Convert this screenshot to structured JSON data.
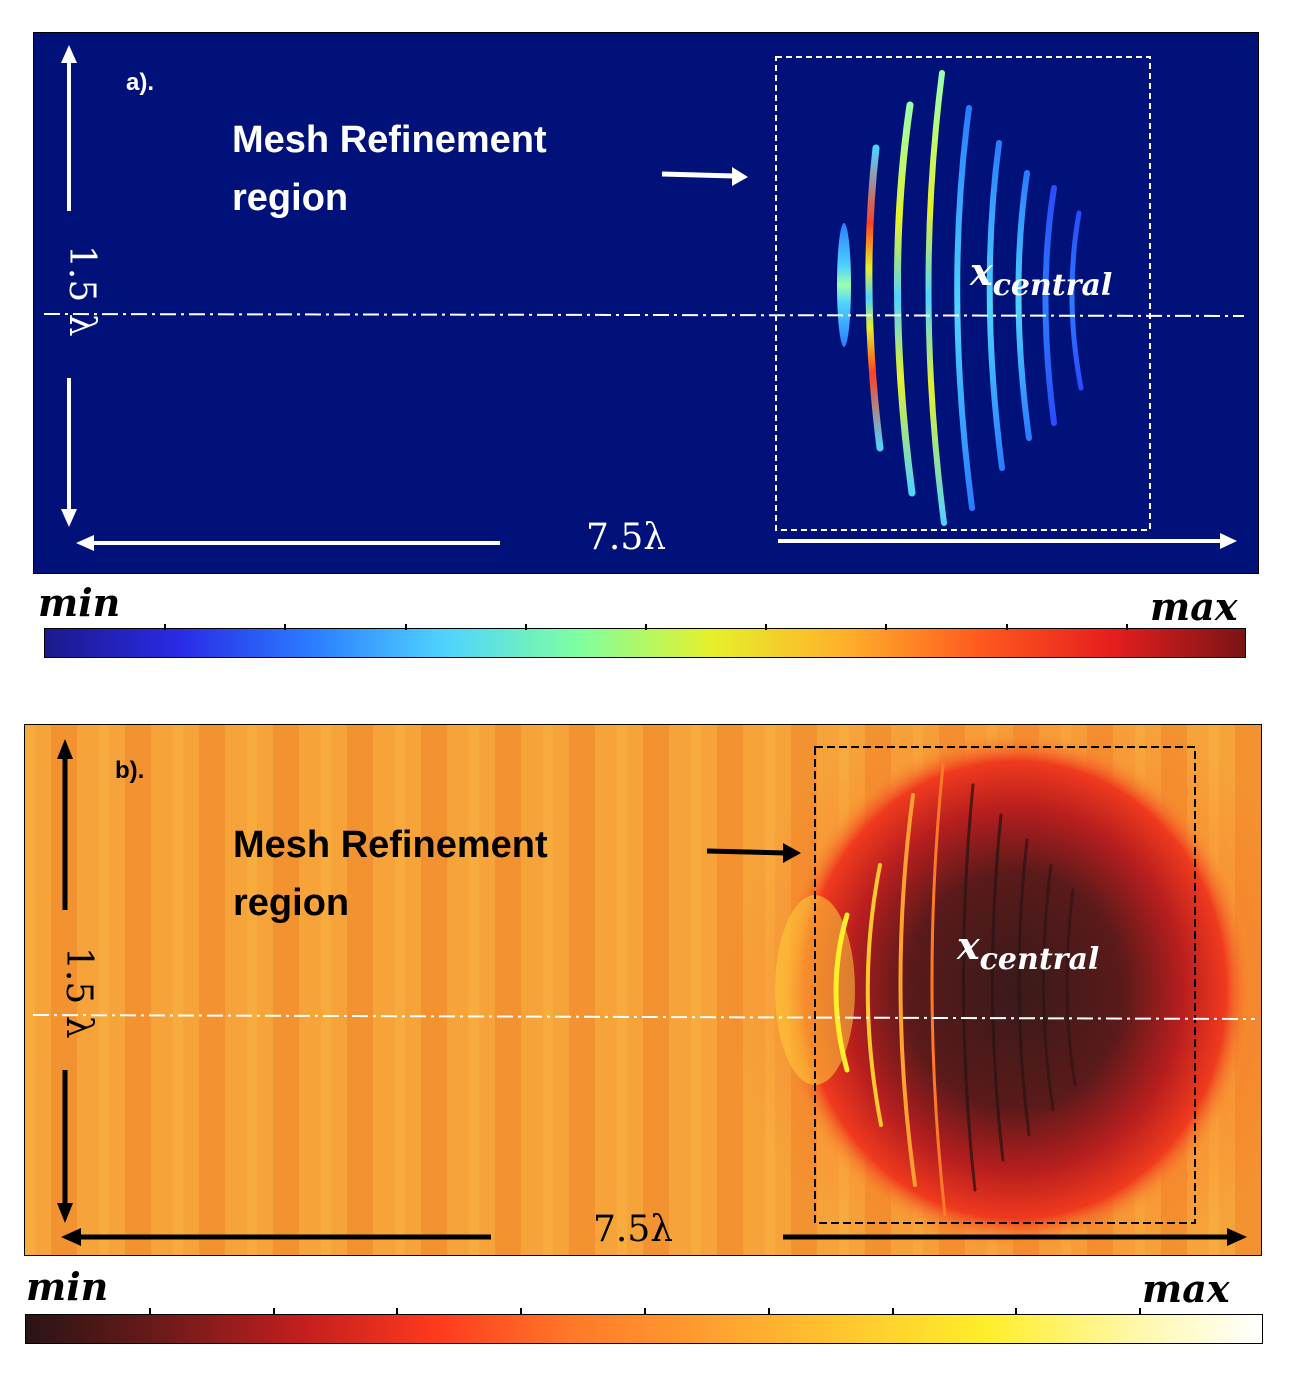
{
  "panel_a": {
    "tag": "a).",
    "title_line1": "Mesh Refinement",
    "title_line2": "region",
    "x_label_main": "x",
    "x_label_sub": "central",
    "height_label": "1.5 λ",
    "width_label": "7.5λ",
    "colormap": "jet",
    "colors": {
      "background": "#00127a",
      "annotation": "#ffffff"
    }
  },
  "colorbar_a": {
    "min_label": "min",
    "max_label": "max",
    "stops": [
      "#1a1a8c",
      "#2a2ae6",
      "#2a7cff",
      "#4fd3ff",
      "#7fffa0",
      "#e6f02a",
      "#ffb02a",
      "#ff5a1e",
      "#e61e1e",
      "#7a1414"
    ]
  },
  "panel_b": {
    "tag": "b).",
    "title_line1": "Mesh Refinement",
    "title_line2": "region",
    "x_label_main": "x",
    "x_label_sub": "central",
    "height_label": "1.5 λ",
    "width_label": "7.5λ",
    "colormap": "hot",
    "colors": {
      "background": "#f7a535",
      "annotation": "#000000"
    }
  },
  "colorbar_b": {
    "min_label": "min",
    "max_label": "max",
    "stops": [
      "#2a1414",
      "#6e1a1a",
      "#c21e1e",
      "#ff3a1e",
      "#ff7a28",
      "#ffa030",
      "#ffc82e",
      "#ffee2a",
      "#fff7a0",
      "#ffffff"
    ]
  }
}
